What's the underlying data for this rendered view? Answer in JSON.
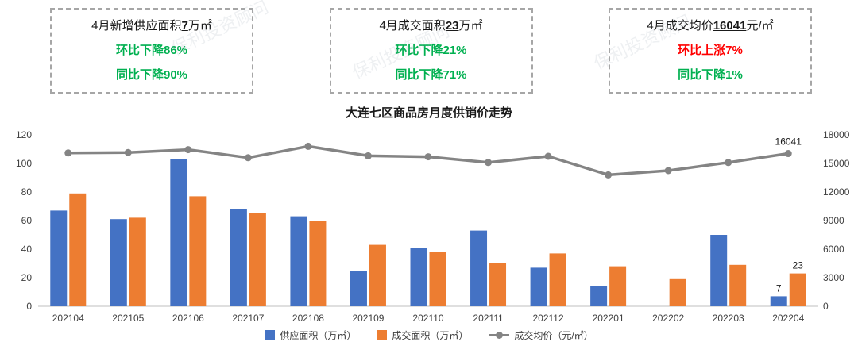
{
  "watermark": {
    "text": "保利投资顾问"
  },
  "summary_boxes": [
    {
      "prefix": "4月新增供应面积",
      "value": "7",
      "suffix": "万㎡",
      "line2": "环比下降86%",
      "line2_color": "green",
      "line3": "同比下降90%",
      "line3_color": "green"
    },
    {
      "prefix": "4月成交面积",
      "value": "23",
      "suffix": "万㎡",
      "line2": "环比下降21%",
      "line2_color": "green",
      "line3": "同比下降71%",
      "line3_color": "green"
    },
    {
      "prefix": "4月成交均价",
      "value": "16041",
      "suffix": "元/㎡",
      "line2": "环比上涨7%",
      "line2_color": "red",
      "line3": "同比下降1%",
      "line3_color": "green"
    }
  ],
  "status_colors": {
    "green": "#00B050",
    "red": "#FF0000"
  },
  "chart_title": "大连七区商品房月度供销价走势",
  "chart_data": {
    "type": "bar+line",
    "title": "大连七区商品房月度供销价走势",
    "categories": [
      "202104",
      "202105",
      "202106",
      "202107",
      "202108",
      "202109",
      "202110",
      "202111",
      "202112",
      "202201",
      "202202",
      "202203",
      "202204"
    ],
    "series": [
      {
        "name": "供应面积（万㎡）",
        "type": "bar",
        "axis": "left",
        "color": "#4472C4",
        "values": [
          67,
          61,
          103,
          68,
          63,
          25,
          41,
          53,
          27,
          14,
          0,
          50,
          7
        ]
      },
      {
        "name": "成交面积（万㎡）",
        "type": "bar",
        "axis": "left",
        "color": "#ED7D31",
        "values": [
          79,
          62,
          77,
          65,
          60,
          43,
          38,
          30,
          37,
          28,
          19,
          29,
          23
        ]
      },
      {
        "name": "成交均价（元/㎡）",
        "type": "line",
        "axis": "right",
        "color": "#848484",
        "values": [
          16100,
          16150,
          16450,
          15600,
          16800,
          15800,
          15700,
          15100,
          15750,
          13800,
          14250,
          15100,
          16041
        ]
      }
    ],
    "left_axis": {
      "min": 0,
      "max": 120,
      "step": 20
    },
    "right_axis": {
      "min": 0,
      "max": 18000,
      "step": 3000
    },
    "point_labels": [
      {
        "series": 0,
        "index": 12,
        "text": "7"
      },
      {
        "series": 1,
        "index": 12,
        "text": "23"
      },
      {
        "series": 2,
        "index": 12,
        "text": "16041"
      }
    ],
    "grid": false,
    "legend_position": "bottom"
  }
}
